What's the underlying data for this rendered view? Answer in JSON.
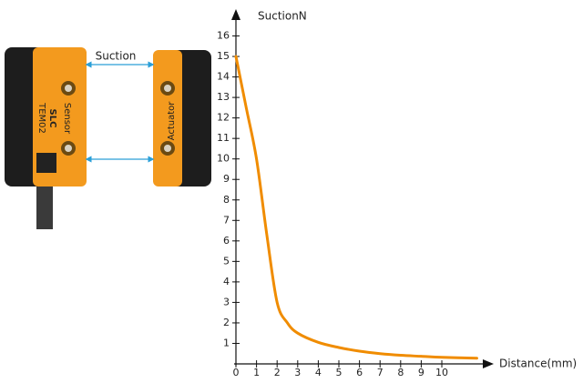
{
  "illustration": {
    "gap_label": "Suction",
    "sensor_name": "Sensor",
    "brand": "SLC",
    "model": "TEM02",
    "actuator_name": "Actuator"
  },
  "chart_data": {
    "type": "line",
    "x_label": "Distance(mm)",
    "y_label": "SuctionN",
    "x": [
      0,
      0.5,
      1,
      1.5,
      2,
      2.5,
      3,
      4,
      5,
      6,
      7,
      8,
      9,
      10,
      11.7
    ],
    "series": [
      {
        "name": "Suction",
        "color": "#f08c00",
        "values": [
          15,
          12.5,
          10,
          6.3,
          3,
          2,
          1.5,
          1.05,
          0.8,
          0.62,
          0.5,
          0.42,
          0.37,
          0.32,
          0.28
        ]
      }
    ],
    "xlim": [
      0,
      12.3
    ],
    "ylim": [
      0,
      16.6
    ],
    "xticks": [
      0,
      1,
      2,
      3,
      4,
      5,
      6,
      7,
      8,
      9,
      10
    ],
    "yticks": [
      1,
      2,
      3,
      4,
      5,
      6,
      7,
      8,
      9,
      10,
      11,
      12,
      13,
      14,
      15,
      16
    ]
  }
}
